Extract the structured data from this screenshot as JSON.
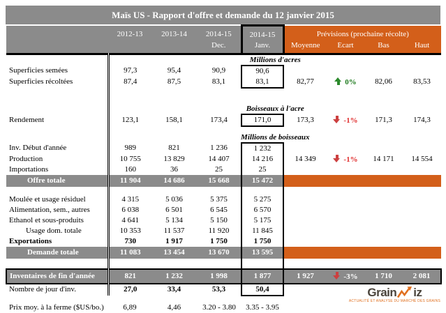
{
  "title": "Maïs US - Rapport d'offre et demande du 12 janvier 2015",
  "header": {
    "col1_year": "2012-13",
    "col2_year": "2013-14",
    "col3_year": "2014-15",
    "col3_sub": "Dec.",
    "col4_year": "2014-15",
    "col4_sub": "Janv.",
    "previsions_title": "Prévisions (prochaine récolte)",
    "previsions_cols": [
      "Moyenne",
      "Écart",
      "Bas",
      "Haut"
    ]
  },
  "colors": {
    "header_gray": "#8b8b8b",
    "accent_orange": "#d35f1a",
    "positive_green": "#1d7a1d",
    "negative_red": "#e03030"
  },
  "table": {
    "rows": [
      {
        "id": "unit-acres",
        "type": "unit",
        "label": "Millions d'acres",
        "dbl": true
      },
      {
        "id": "superficies-semees",
        "type": "data",
        "label": "Superficies semées",
        "dbl": true,
        "c4": "start",
        "values": [
          "97,3",
          "95,4",
          "90,9",
          "90,6",
          "",
          "",
          "",
          ""
        ]
      },
      {
        "id": "superficies-recoltees",
        "type": "data",
        "label": "Superficies récoltées",
        "dbl": true,
        "c4": "end",
        "values": [
          "87,4",
          "87,5",
          "83,1",
          "83,1",
          "82,77",
          "up|0%",
          "82,06",
          "83,53"
        ]
      },
      {
        "id": "spacer-1",
        "type": "spacer",
        "variant": "sp-a",
        "dbl": true
      },
      {
        "id": "unit-bushels-per-acre",
        "type": "unit",
        "label": "Boisseaux à l'acre",
        "dbl": true
      },
      {
        "id": "rendement",
        "type": "data",
        "label": "Rendement",
        "dbl": true,
        "c4": "full",
        "values": [
          "123,1",
          "158,1",
          "173,4",
          "171,0",
          "173,3",
          "down|-1%",
          "171,3",
          "174,3"
        ]
      },
      {
        "id": "spacer-2",
        "type": "spacer",
        "variant": "sp-b",
        "dbl": true
      },
      {
        "id": "unit-bushels",
        "type": "unit",
        "label": "Millions de boisseaux",
        "dbl": true
      },
      {
        "id": "inv-debut-annee",
        "type": "data",
        "label": "Inv. Début d'année",
        "dbl": true,
        "c4": "start",
        "values": [
          "989",
          "821",
          "1 236",
          "1 232",
          "",
          "",
          "",
          ""
        ]
      },
      {
        "id": "production",
        "type": "data",
        "label": "Production",
        "dbl": true,
        "c4": "mid",
        "values": [
          "10 755",
          "13 829",
          "14 407",
          "14 216",
          "14 349",
          "down|-1%",
          "14 171",
          "14 554"
        ]
      },
      {
        "id": "importations",
        "type": "data",
        "label": "Importations",
        "dbl": true,
        "c4": "mid",
        "values": [
          "160",
          "36",
          "25",
          "25",
          "",
          "",
          "",
          ""
        ]
      },
      {
        "id": "offre-totale",
        "type": "total",
        "label": "Offre totale",
        "dbl": true,
        "c4": "mid",
        "values": [
          "11 904",
          "14 686",
          "15 668",
          "15 472"
        ]
      },
      {
        "id": "spacer-3",
        "type": "spacer",
        "variant": "sp-c",
        "dbl": true,
        "c4": "mid"
      },
      {
        "id": "moulee-usage-residuel",
        "type": "data",
        "label": "Moulée et usage résiduel",
        "dbl": true,
        "c4": "mid",
        "values": [
          "4 315",
          "5 036",
          "5 375",
          "5 275",
          "",
          "",
          "",
          ""
        ]
      },
      {
        "id": "alimentation",
        "type": "data",
        "label": "Alimentation, sem., autres",
        "dbl": true,
        "c4": "mid",
        "values": [
          "6 038",
          "6 501",
          "6 545",
          "6 570",
          "",
          "",
          "",
          ""
        ]
      },
      {
        "id": "ethanol-sous-produits",
        "type": "data",
        "label": "Ethanol et sous-produits",
        "dbl": true,
        "c4": "mid",
        "values": [
          "4 641",
          "5 134",
          "5 150",
          "5 175",
          "",
          "",
          "",
          ""
        ]
      },
      {
        "id": "usage-dom-totale",
        "type": "data",
        "label": "Usage dom. totale",
        "indent": true,
        "dbl": true,
        "c4": "mid",
        "values": [
          "10 353",
          "11 537",
          "11 920",
          "11 845",
          "",
          "",
          "",
          ""
        ]
      },
      {
        "id": "exportations",
        "type": "data",
        "label": "Exportations",
        "bold": true,
        "boldvals": true,
        "dbl": true,
        "c4": "mid",
        "values": [
          "730",
          "1 917",
          "1 750",
          "1 750",
          "",
          "",
          "",
          ""
        ]
      },
      {
        "id": "demande-totale",
        "type": "total",
        "label": "Demande totale",
        "dbl": true,
        "c4": "mid",
        "values": [
          "11 083",
          "13 454",
          "13 670",
          "13 595"
        ]
      },
      {
        "id": "spacer-4",
        "type": "spacer",
        "variant": "sp-d",
        "dbl": true,
        "c4": "mid"
      },
      {
        "id": "inventaires-fin-annee",
        "type": "inventory",
        "label": "Inventaires de fin d'année",
        "dbl": true,
        "c4": "mid",
        "values": [
          "821",
          "1 232",
          "1 998",
          "1 877",
          "1 927",
          "down|-3%",
          "1 710",
          "2 081"
        ]
      },
      {
        "id": "nombre-jour-inv",
        "type": "data",
        "label": "Nombre de jour d'inv.",
        "boldvals": true,
        "dbl": true,
        "c4": "end",
        "values": [
          "27,0",
          "33,4",
          "53,3",
          "50,4",
          "",
          "",
          "",
          ""
        ]
      },
      {
        "id": "spacer-5",
        "type": "spacer",
        "variant": "sp-e"
      },
      {
        "id": "prix-moyen-ferme",
        "type": "data",
        "label": "Prix moy. à la ferme ($US/bo.)",
        "values": [
          "6,89",
          "4,46",
          "3.20 - 3.80",
          "3.35 - 3.95",
          "",
          "",
          "",
          ""
        ]
      }
    ]
  },
  "logo": {
    "part1": "Grain",
    "part2": "iz",
    "tagline": "ACTUALITÉ ET ANALYSE DU MARCHÉ DES GRAINS"
  }
}
